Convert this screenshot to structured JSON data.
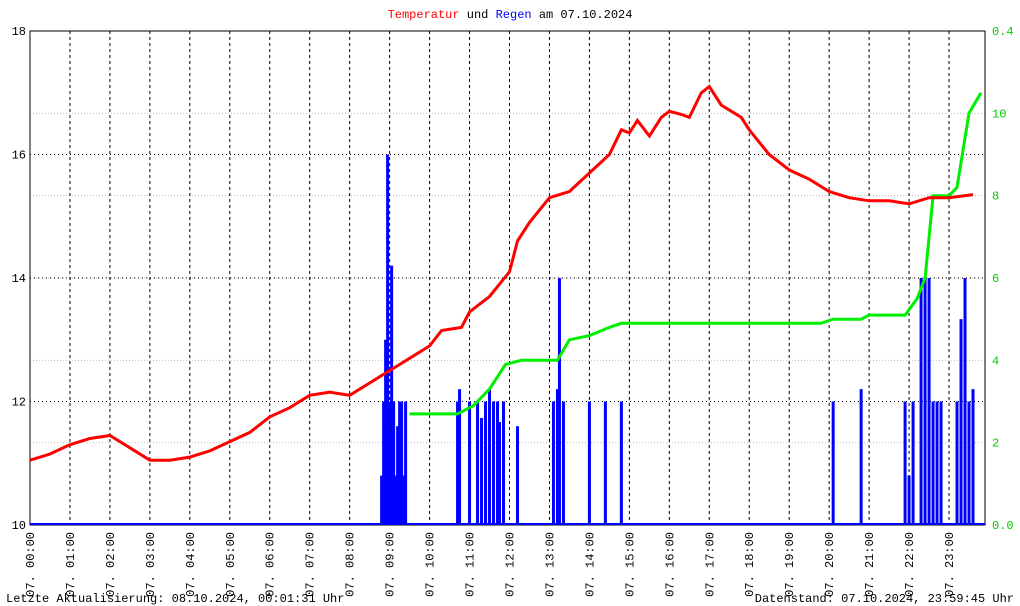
{
  "chart_data": {
    "type": "line",
    "title_connector": "und",
    "title_suffix": "am 07.10.2024",
    "footer_left": "Letzte Aktualisierung: 08.10.2024, 00:01:31 Uhr",
    "footer_right": "Datenstand: 07.10.2024, 23:59:45 Uhr",
    "xlim": [
      0,
      23.9
    ],
    "xticks": [
      {
        "value": 0,
        "label": "07. 00:00"
      },
      {
        "value": 1,
        "label": "07. 01:00"
      },
      {
        "value": 2,
        "label": "07. 02:00"
      },
      {
        "value": 3,
        "label": "07. 03:00"
      },
      {
        "value": 4,
        "label": "07. 04:00"
      },
      {
        "value": 5,
        "label": "07. 05:00"
      },
      {
        "value": 6,
        "label": "07. 06:00"
      },
      {
        "value": 7,
        "label": "07. 07:00"
      },
      {
        "value": 8,
        "label": "07. 08:00"
      },
      {
        "value": 9,
        "label": "07. 09:00"
      },
      {
        "value": 10,
        "label": "07. 10:00"
      },
      {
        "value": 11,
        "label": "07. 11:00"
      },
      {
        "value": 12,
        "label": "07. 12:00"
      },
      {
        "value": 13,
        "label": "07. 13:00"
      },
      {
        "value": 14,
        "label": "07. 14:00"
      },
      {
        "value": 15,
        "label": "07. 15:00"
      },
      {
        "value": 16,
        "label": "07. 16:00"
      },
      {
        "value": 17,
        "label": "07. 17:00"
      },
      {
        "value": 18,
        "label": "07. 18:00"
      },
      {
        "value": 19,
        "label": "07. 19:00"
      },
      {
        "value": 20,
        "label": "07. 20:00"
      },
      {
        "value": 21,
        "label": "07. 21:00"
      },
      {
        "value": 22,
        "label": "07. 22:00"
      },
      {
        "value": 23,
        "label": "07. 23:00"
      }
    ],
    "ylim": [
      10,
      18
    ],
    "yticks": [
      10,
      12,
      14,
      16,
      18
    ],
    "y2lim": [
      0,
      12
    ],
    "y2ticks": [
      {
        "value": 0,
        "label": "0.0"
      },
      2,
      4,
      6,
      8,
      10
    ],
    "y2_top_label": "0.4",
    "grid": true,
    "series": [
      {
        "name": "Temperatur",
        "color": "#ff0000",
        "kind": "line",
        "x": [
          0,
          0.5,
          1,
          1.5,
          2,
          2.5,
          3,
          3.5,
          4,
          4.5,
          5,
          5.5,
          6,
          6.5,
          7,
          7.5,
          8,
          8.5,
          9,
          9.5,
          10,
          10.3,
          10.8,
          11,
          11.5,
          12,
          12.2,
          12.5,
          13,
          13.5,
          14,
          14.5,
          14.8,
          15,
          15.2,
          15.5,
          15.8,
          16,
          16.3,
          16.5,
          16.8,
          17,
          17.3,
          17.8,
          18,
          18.5,
          19,
          19.5,
          20,
          20.5,
          21,
          21.5,
          22,
          22.5,
          23,
          23.6
        ],
        "values": [
          11.05,
          11.15,
          11.3,
          11.4,
          11.45,
          11.25,
          11.05,
          11.05,
          11.1,
          11.2,
          11.35,
          11.5,
          11.75,
          11.9,
          12.1,
          12.15,
          12.1,
          12.3,
          12.5,
          12.7,
          12.9,
          13.15,
          13.2,
          13.45,
          13.7,
          14.1,
          14.6,
          14.9,
          15.3,
          15.4,
          15.7,
          16.0,
          16.4,
          16.35,
          16.55,
          16.3,
          16.6,
          16.7,
          16.65,
          16.6,
          17.0,
          17.1,
          16.8,
          16.6,
          16.4,
          16.0,
          15.75,
          15.6,
          15.4,
          15.3,
          15.25,
          15.25,
          15.2,
          15.3,
          15.3,
          15.35
        ]
      },
      {
        "name": "Regen",
        "color": "#0000ff",
        "kind": "bar",
        "axis": "y2",
        "x": [
          8.8,
          8.85,
          8.9,
          8.95,
          9.0,
          9.05,
          9.1,
          9.15,
          9.2,
          9.25,
          9.3,
          9.35,
          9.4,
          10.7,
          10.75,
          11.0,
          11.2,
          11.3,
          11.4,
          11.5,
          11.6,
          11.7,
          11.75,
          11.85,
          12.2,
          13.1,
          13.2,
          13.25,
          13.35,
          14.0,
          14.4,
          14.8,
          20.1,
          20.8,
          21.9,
          22.0,
          22.1,
          22.3,
          22.4,
          22.5,
          22.6,
          22.7,
          22.8,
          23.2,
          23.3,
          23.4,
          23.5,
          23.6
        ],
        "values": [
          1.2,
          3,
          4.5,
          9,
          3,
          6.3,
          3,
          1.2,
          2.4,
          3,
          3,
          1.2,
          3,
          3,
          3.3,
          3,
          3,
          2.6,
          3,
          3.3,
          3,
          3,
          2.5,
          3,
          2.4,
          3,
          3.3,
          6,
          3,
          3,
          3,
          3,
          3,
          3.3,
          3,
          1.2,
          3,
          6,
          6,
          6,
          3,
          3,
          3,
          3,
          5,
          6,
          3,
          3.3
        ]
      },
      {
        "color": "#00ee00",
        "kind": "line",
        "axis": "y2",
        "x": [
          9.5,
          10.7,
          11.1,
          11.5,
          11.9,
          12.3,
          13.2,
          13.5,
          14,
          14.5,
          14.8,
          19.8,
          20.1,
          20.8,
          21,
          21.9,
          22.2,
          22.4,
          22.6,
          23,
          23.2,
          23.5,
          23.8
        ],
        "values": [
          2.7,
          2.7,
          2.9,
          3.3,
          3.9,
          4.0,
          4.0,
          4.5,
          4.6,
          4.8,
          4.9,
          4.9,
          5.0,
          5.0,
          5.1,
          5.1,
          5.5,
          6.0,
          8.0,
          8.0,
          8.2,
          10.0,
          10.5
        ]
      }
    ]
  }
}
